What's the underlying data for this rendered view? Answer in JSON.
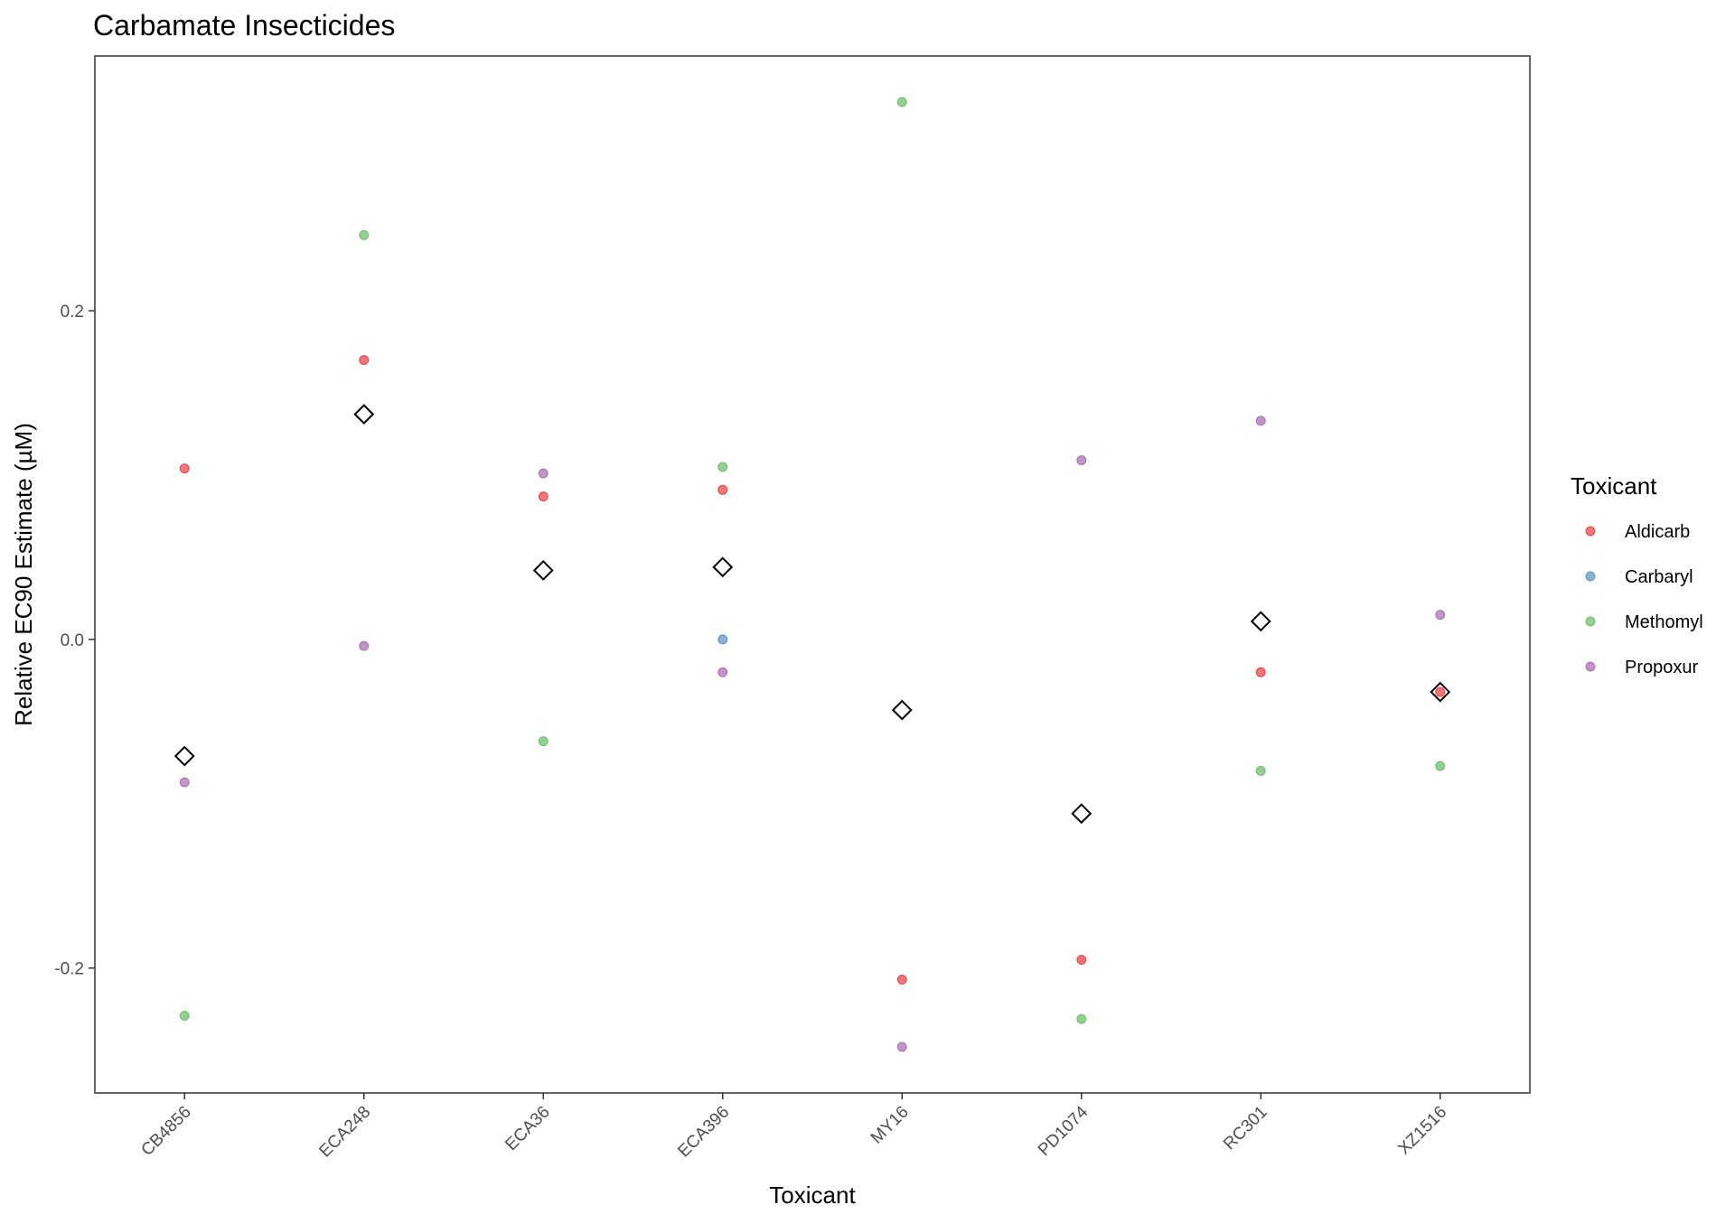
{
  "chart_data": {
    "type": "scatter",
    "title": "Carbamate Insecticides",
    "xlabel": "Toxicant",
    "ylabel": "Relative EC90 Estimate (µM)",
    "categories": [
      "CB4856",
      "ECA248",
      "ECA36",
      "ECA396",
      "MY16",
      "PD1074",
      "RC301",
      "XZ1516"
    ],
    "ylim": [
      -0.276,
      0.355
    ],
    "yticks": [
      -0.2,
      0.0,
      0.2
    ],
    "ytick_labels": [
      "-0.2",
      "0.0",
      "0.2"
    ],
    "grid": false,
    "legend": {
      "title": "Toxicant",
      "position": "right"
    },
    "series": [
      {
        "name": "Aldicarb",
        "color": "#E41A1C",
        "values": [
          0.104,
          0.17,
          0.087,
          0.091,
          -0.207,
          -0.195,
          -0.02,
          -0.032
        ]
      },
      {
        "name": "Carbaryl",
        "color": "#377EB8",
        "values": [
          null,
          null,
          null,
          0.0,
          null,
          null,
          null,
          null
        ]
      },
      {
        "name": "Methomyl",
        "color": "#4DAF4A",
        "values": [
          -0.229,
          0.246,
          -0.062,
          0.105,
          0.327,
          -0.231,
          -0.08,
          -0.077
        ]
      },
      {
        "name": "Propoxur",
        "color": "#984EA3",
        "values": [
          -0.087,
          -0.004,
          0.101,
          -0.02,
          -0.248,
          0.109,
          0.133,
          0.015
        ]
      }
    ],
    "means": {
      "marker": "diamond",
      "values": [
        -0.071,
        0.137,
        0.042,
        0.044,
        -0.043,
        -0.106,
        0.011,
        -0.032
      ]
    }
  }
}
